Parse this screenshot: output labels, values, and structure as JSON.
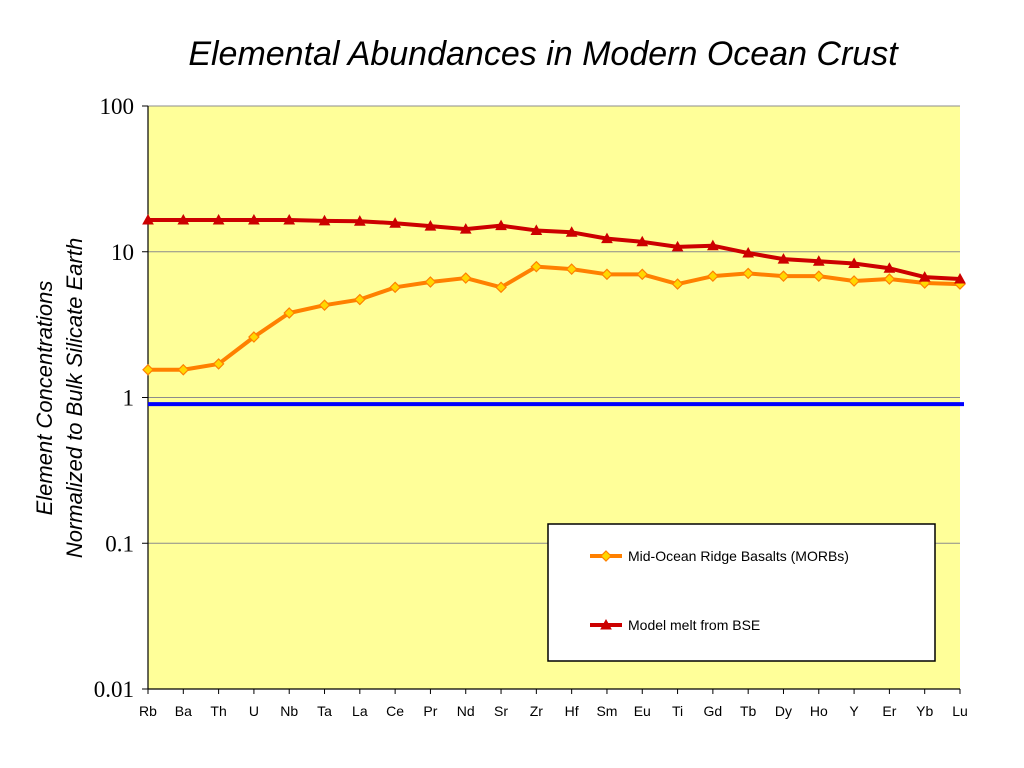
{
  "chart_data": {
    "type": "line",
    "title": "Elemental Abundances in Modern Ocean Crust",
    "ylabel_line1": "Element Concentrations",
    "ylabel_line2": "Normalized to Bulk Silicate Earth",
    "xlabel": "",
    "y_scale": "log",
    "ylim": [
      0.01,
      100
    ],
    "y_ticks": [
      "100",
      "10",
      "1",
      "0.1",
      "0.01"
    ],
    "y_tick_values": [
      100,
      10,
      1,
      0.1,
      0.01
    ],
    "categories": [
      "Rb",
      "Ba",
      "Th",
      "U",
      "Nb",
      "Ta",
      "La",
      "Ce",
      "Pr",
      "Nd",
      "Sr",
      "Zr",
      "Hf",
      "Sm",
      "Eu",
      "Ti",
      "Gd",
      "Tb",
      "Dy",
      "Ho",
      "Y",
      "Er",
      "Yb",
      "Lu"
    ],
    "series": [
      {
        "name": "Mid-Ocean Ridge Basalts (MORBs)",
        "color": "#FF8000",
        "marker": "diamond",
        "marker_fill": "#FFD700",
        "values": [
          1.55,
          1.55,
          1.7,
          2.6,
          3.8,
          4.3,
          4.7,
          5.7,
          6.2,
          6.6,
          5.7,
          7.9,
          7.6,
          7.0,
          7.0,
          6.0,
          6.8,
          7.1,
          6.8,
          6.8,
          6.3,
          6.5,
          6.1,
          6.0
        ]
      },
      {
        "name": "Model melt from BSE",
        "color": "#CC0000",
        "marker": "triangle",
        "marker_fill": "#CC0000",
        "values": [
          16.5,
          16.5,
          16.5,
          16.5,
          16.5,
          16.3,
          16.2,
          15.7,
          15.0,
          14.3,
          15.1,
          14.0,
          13.6,
          12.3,
          11.7,
          10.8,
          11.0,
          9.8,
          8.9,
          8.6,
          8.3,
          7.7,
          6.7,
          6.5
        ]
      }
    ],
    "reference_line": {
      "value": 0.9,
      "color": "#0000FF"
    },
    "plot_background": "#FFFF99",
    "gridlines": true,
    "legend_position": "bottom-right"
  }
}
